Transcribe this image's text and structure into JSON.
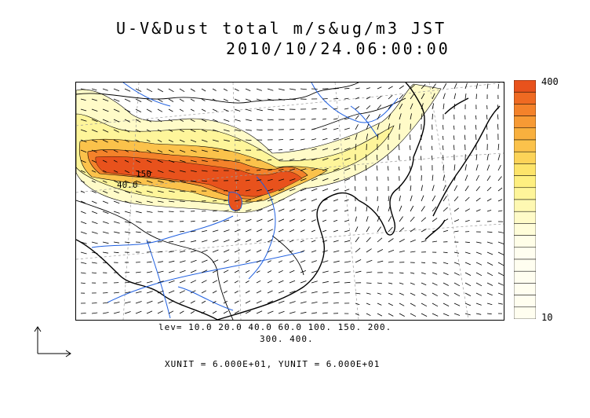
{
  "title": {
    "line1": "U-V&Dust total m/s&ug/m3 JST",
    "line2": "2010/10/24.06:00:00"
  },
  "colorbar": {
    "max_label": "400",
    "min_label": "10",
    "colors": [
      "#e8521c",
      "#ef6a22",
      "#f4822a",
      "#f79a34",
      "#f9b03e",
      "#fbc24b",
      "#fcd358",
      "#fde46a",
      "#feef80",
      "#fef59a",
      "#fef8b2",
      "#fffbc8",
      "#fffdd9",
      "#fffee8"
    ]
  },
  "levels": {
    "line1": "lev= 10.0 20.0 40.0 60.0 100. 150. 200.",
    "line2": "300. 400."
  },
  "units_text": "XUNIT = 6.000E+01, YUNIT = 6.000E+01",
  "contour_labels": {
    "a": "150",
    "b": "40.0"
  },
  "colors": {
    "rivers": "#1f5fe0",
    "coast": "#000000",
    "borders": "#000000",
    "grid": "#9a9a9a"
  }
}
